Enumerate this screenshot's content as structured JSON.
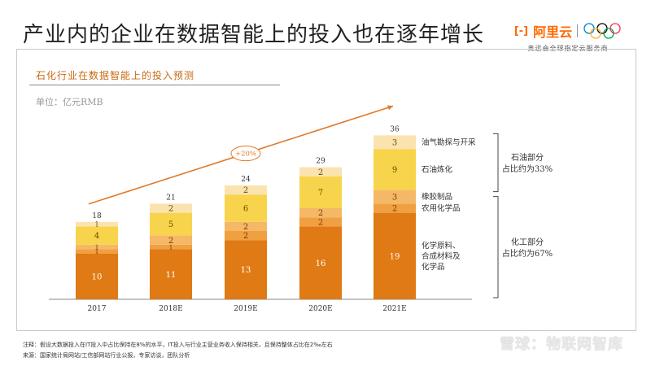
{
  "page": {
    "title": "产业内的企业在数据智能上的投入也在逐年增长"
  },
  "brand": {
    "logo_mark": "[-]",
    "name": "阿里云",
    "subtitle": "奥运会全球指定云服务商",
    "icons": [
      "aliyun-logo-icon",
      "olympic-rings-icon"
    ]
  },
  "colors": {
    "bar_base": "#e07a14",
    "bar_chem": "#f0a040",
    "bar_rubber": "#f5b866",
    "bar_refine": "#f7d44c",
    "bar_oil": "#fbe3b0",
    "trend": "#e07a2a",
    "accent_text": "#c86a12"
  },
  "chart_data": {
    "type": "bar",
    "stacked": true,
    "title": "石化行业在数据智能上的投入预测",
    "unit_label": "单位：亿元RMB",
    "categories": [
      "2017",
      "2018E",
      "2019E",
      "2020E",
      "2021E"
    ],
    "series": [
      {
        "name": "化学原料、合成材料及化学品",
        "values": [
          10,
          11,
          13,
          16,
          19
        ]
      },
      {
        "name": "农用化学品",
        "values": [
          1,
          1,
          2,
          2,
          2
        ]
      },
      {
        "name": "橡胶制品",
        "values": [
          1,
          2,
          2,
          2,
          3
        ]
      },
      {
        "name": "石油炼化",
        "values": [
          4,
          5,
          6,
          7,
          9
        ]
      },
      {
        "name": "油气勘探与开采",
        "values": [
          1,
          2,
          2,
          2,
          3
        ]
      }
    ],
    "totals": [
      18,
      21,
      24,
      29,
      36
    ],
    "trend_label": "+20%",
    "ylim": [
      0,
      40
    ]
  },
  "groups": [
    {
      "label": "石油部分",
      "share": "占比约为33%"
    },
    {
      "label": "化工部分",
      "share": "占比约为67%"
    }
  ],
  "footnotes": [
    "注释：假设大数据投入在IT投入中占比保持在8%的水平，IT投入与行业主营业务收入保持相关，且保持整体占比在2‰左右",
    "来源：国家统计局网站/工信部网站行业公报，专家访谈，团队分析"
  ],
  "watermark": "雪球：物联网智库"
}
